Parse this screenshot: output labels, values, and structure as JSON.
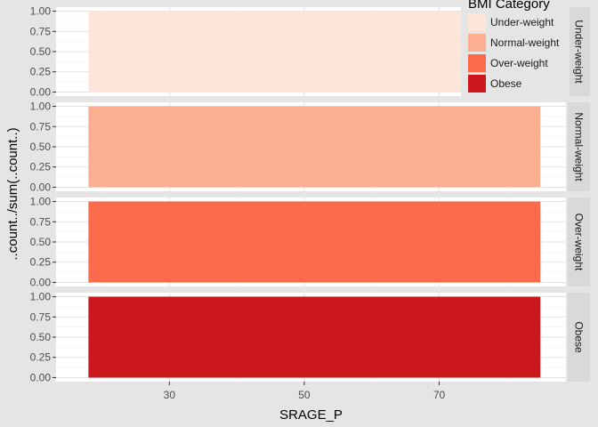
{
  "chart_data": {
    "type": "bar",
    "xlabel": "SRAGE_P",
    "ylabel": "..count../sum(..count..)",
    "x_range": [
      13.2,
      88.8
    ],
    "x_ticks": [
      30,
      50,
      70
    ],
    "y_range": [
      -0.05,
      1.05
    ],
    "y_ticks": [
      "0.00",
      "0.25",
      "0.50",
      "0.75",
      "1.00"
    ],
    "grid": true,
    "legend": {
      "title": "BMI Category",
      "placement": "top-right"
    },
    "bar_x_range": [
      18,
      85
    ],
    "series": [
      {
        "name": "Under-weight",
        "facet_label": "Under-weight",
        "value": 1.0,
        "color": "#FEE5D9"
      },
      {
        "name": "Normal-weight",
        "facet_label": "Normal-weight",
        "value": 1.0,
        "color": "#FCAE91"
      },
      {
        "name": "Over-weight",
        "facet_label": "Over-weight",
        "value": 1.0,
        "color": "#FB6A4A"
      },
      {
        "name": "Obese",
        "facet_label": "Obese",
        "value": 1.0,
        "color": "#CB181D"
      }
    ]
  }
}
